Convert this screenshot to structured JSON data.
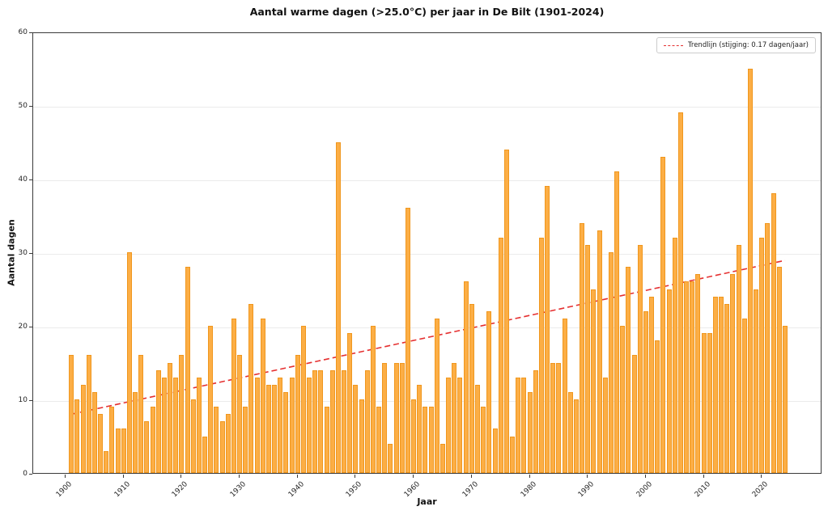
{
  "figure": {
    "title": "Aantal warme dagen (>25.0°C) per jaar in De Bilt (1901-2024)"
  },
  "chart_data": {
    "type": "bar",
    "title": "Aantal warme dagen (>25.0°C) per jaar in De Bilt (1901-2024)",
    "xlabel": "Jaar",
    "ylabel": "Aantal dagen",
    "start_year": 1901,
    "end_year": 2024,
    "values": [
      16,
      10,
      12,
      16,
      11,
      8,
      3,
      9,
      6,
      6,
      30,
      11,
      16,
      7,
      9,
      14,
      13,
      15,
      13,
      16,
      28,
      10,
      13,
      5,
      20,
      9,
      7,
      8,
      21,
      16,
      9,
      23,
      13,
      21,
      12,
      12,
      13,
      11,
      13,
      16,
      20,
      13,
      14,
      14,
      9,
      14,
      45,
      14,
      19,
      12,
      10,
      14,
      20,
      9,
      15,
      4,
      15,
      15,
      36,
      10,
      12,
      9,
      9,
      21,
      4,
      13,
      15,
      13,
      26,
      23,
      12,
      9,
      22,
      6,
      32,
      44,
      5,
      13,
      13,
      11,
      14,
      32,
      39,
      15,
      15,
      21,
      11,
      10,
      34,
      31,
      25,
      33,
      13,
      30,
      41,
      20,
      28,
      16,
      31,
      22,
      24,
      18,
      43,
      25,
      32,
      49,
      26,
      26,
      27,
      19,
      19,
      24,
      24,
      23,
      27,
      31,
      21,
      55,
      25,
      32,
      34,
      38,
      28,
      20
    ],
    "xticks": [
      1900,
      1910,
      1920,
      1930,
      1940,
      1950,
      1960,
      1970,
      1980,
      1990,
      2000,
      2010,
      2020
    ],
    "yticks": [
      0,
      10,
      20,
      30,
      40,
      50,
      60
    ],
    "ylim": [
      0,
      60
    ],
    "grid": "horizontal",
    "bar_color": "#fcae45",
    "bar_edge_color": "#f0971e",
    "legend": {
      "position": "upper right",
      "entries": [
        {
          "label": "Trendlijn (stijging: 0.17 dagen/jaar)",
          "color": "#e53030",
          "style": "dashed"
        }
      ]
    },
    "trendline": {
      "slope_per_year": 0.17,
      "value_1901": 8.1,
      "value_2024": 29.0,
      "color": "#e53030",
      "style": "dashed"
    }
  }
}
